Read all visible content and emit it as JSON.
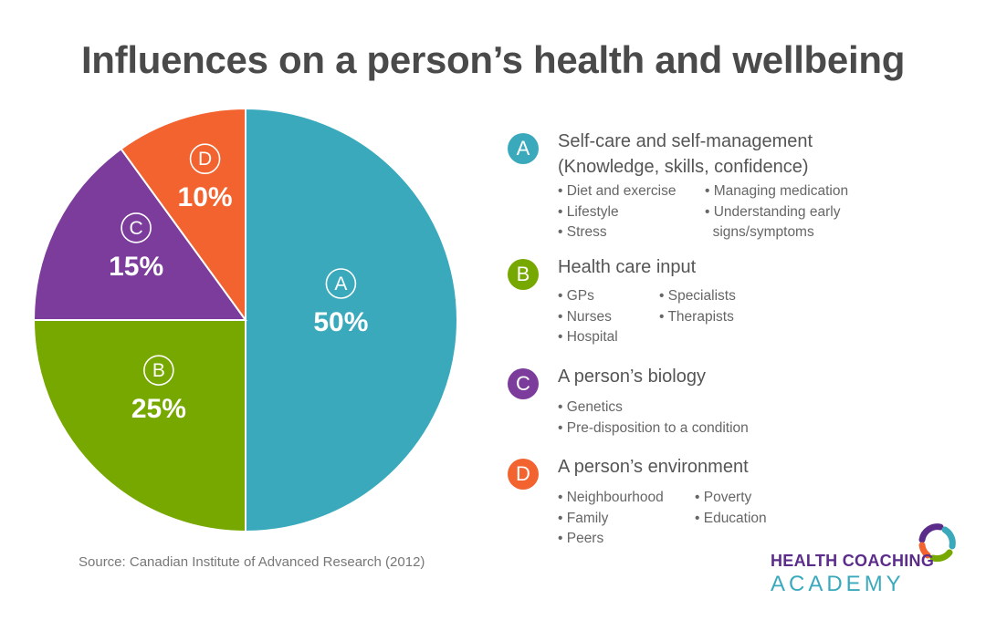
{
  "title": "Influences on a person’s health and wellbeing",
  "source": "Source: Canadian Institute of Advanced Research (2012)",
  "chart_data": {
    "type": "pie",
    "slices": [
      {
        "letter": "A",
        "label": "50%",
        "value": 50,
        "color": "#3aa9bc"
      },
      {
        "letter": "B",
        "label": "25%",
        "value": 25,
        "color": "#76a800"
      },
      {
        "letter": "C",
        "label": "15%",
        "value": 15,
        "color": "#7b3c9b"
      },
      {
        "letter": "D",
        "label": "10%",
        "value": 10,
        "color": "#f2632f"
      }
    ]
  },
  "legend": [
    {
      "letter": "A",
      "color": "#3aa9bc",
      "title": [
        "Self-care and self-management",
        "(Knowledge, skills, confidence)"
      ],
      "columns": [
        [
          "• Diet and exercise",
          "• Lifestyle",
          "• Stress"
        ],
        [
          "• Managing medication",
          "• Understanding early",
          "  signs/symptoms"
        ]
      ]
    },
    {
      "letter": "B",
      "color": "#76a800",
      "title": [
        "Health care input"
      ],
      "columns": [
        [
          "• GPs",
          "• Nurses",
          "• Hospital"
        ],
        [
          "• Specialists",
          "• Therapists"
        ]
      ]
    },
    {
      "letter": "C",
      "color": "#7b3c9b",
      "title": [
        "A person’s biology"
      ],
      "columns": [
        [
          "• Genetics",
          "• Pre-disposition to a condition"
        ]
      ]
    },
    {
      "letter": "D",
      "color": "#f2632f",
      "title": [
        "A person’s environment"
      ],
      "columns": [
        [
          "• Neighbourhood",
          "• Family",
          "• Peers"
        ],
        [
          "• Poverty",
          "• Education"
        ]
      ]
    }
  ],
  "logo": {
    "line1": "HEALTH COACHING",
    "line2": "ACADEMY",
    "colors": {
      "purple": "#5b2c8a",
      "teal": "#3aa9bc",
      "green": "#76a800",
      "orange": "#f2632f"
    }
  }
}
